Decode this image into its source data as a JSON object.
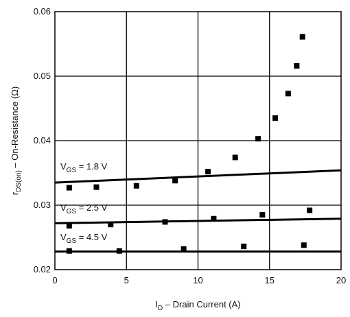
{
  "chart_data": {
    "type": "scatter",
    "title": "",
    "xlabel": {
      "main": "I",
      "sub": "D",
      "rest": " – Drain Current (A)"
    },
    "ylabel": {
      "main": "r",
      "sub": "DS(on)",
      "rest": " – On-Resistance (Ω)"
    },
    "xlim": [
      0,
      20
    ],
    "ylim": [
      0.02,
      0.06
    ],
    "x_ticks": [
      0,
      5,
      10,
      15,
      20
    ],
    "y_ticks": [
      0.02,
      0.03,
      0.04,
      0.05,
      0.06
    ],
    "x_tick_labels": [
      "0",
      "5",
      "10",
      "15",
      "20"
    ],
    "y_tick_labels": [
      "0.02",
      "0.03",
      "0.04",
      "0.05",
      "0.06"
    ],
    "grid": true,
    "series": [
      {
        "annotation": {
          "main": "V",
          "sub": "GS",
          "rest": " = 1.8 V"
        },
        "line": [
          [
            0,
            0.0335
          ],
          [
            20,
            0.0354
          ]
        ],
        "points": [
          [
            1.0,
            0.0327
          ],
          [
            2.9,
            0.0328
          ],
          [
            5.7,
            0.033
          ],
          [
            8.4,
            0.0338
          ],
          [
            10.7,
            0.0352
          ],
          [
            12.6,
            0.0374
          ],
          [
            14.2,
            0.0403
          ],
          [
            15.4,
            0.0435
          ],
          [
            16.3,
            0.0473
          ],
          [
            16.9,
            0.0516
          ],
          [
            17.3,
            0.0561
          ]
        ]
      },
      {
        "annotation": {
          "main": "V",
          "sub": "GS",
          "rest": " = 2.5 V"
        },
        "line": [
          [
            0,
            0.0272
          ],
          [
            20,
            0.0279
          ]
        ],
        "points": [
          [
            1.0,
            0.0268
          ],
          [
            3.9,
            0.027
          ],
          [
            7.7,
            0.0274
          ],
          [
            11.1,
            0.0279
          ],
          [
            14.5,
            0.0285
          ],
          [
            17.8,
            0.0292
          ]
        ]
      },
      {
        "annotation": {
          "main": "V",
          "sub": "GS",
          "rest": " = 4.5 V"
        },
        "line": [
          [
            0,
            0.0228
          ],
          [
            20,
            0.0228
          ]
        ],
        "points": [
          [
            1.0,
            0.0229
          ],
          [
            4.5,
            0.0229
          ],
          [
            9.0,
            0.0232
          ],
          [
            13.2,
            0.0236
          ],
          [
            17.4,
            0.0238
          ]
        ]
      }
    ]
  }
}
